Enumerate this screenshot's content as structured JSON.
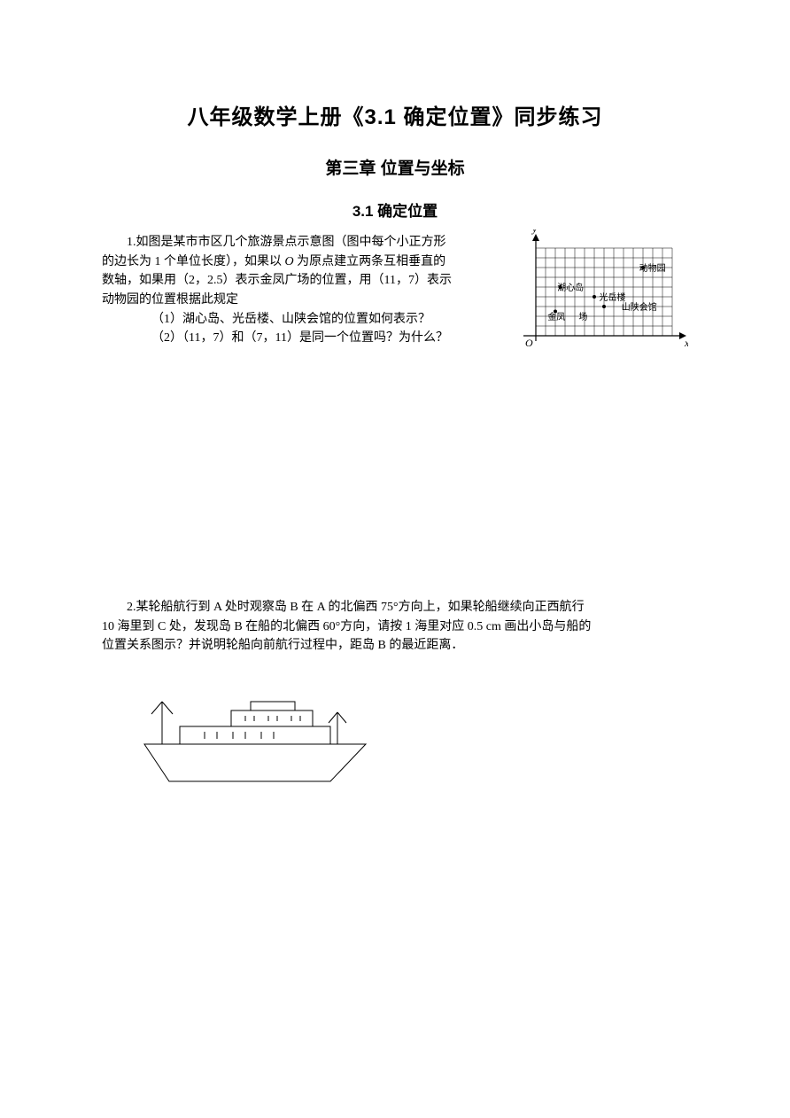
{
  "titles": {
    "main": "八年级数学上册《3.1 确定位置》同步练习",
    "chapter": "第三章  位置与坐标",
    "section": "3.1  确定位置"
  },
  "problem1": {
    "line1a": "1.如图是某市市区几个旅游景点示意图（图中每个小正方形",
    "line1b": "的边长为 1 个单位长度），如果以 ",
    "line1c": " 为原点建立两条互相垂直的",
    "line1d": "数轴，如果用（2，2.5）表示金凤广场的位置，用（11，7）表示",
    "line1e": "动物园的位置根据此规定",
    "sub1": "（1）湖心岛、光岳楼、山陕会馆的位置如何表示？",
    "sub2": "（2）（11，7）和（7，11）是同一个位置吗？为什么？",
    "O": "O"
  },
  "grid_figure": {
    "bg": "#ffffff",
    "grid_color": "#000000",
    "axis_color": "#000000",
    "text_color": "#000000",
    "cell": 11,
    "cols": 14,
    "rows": 9,
    "origin_label": "O",
    "x_label": "x",
    "y_label": "y",
    "labels": [
      {
        "text": "动物园",
        "col": 10.6,
        "row": 7
      },
      {
        "text": "湖心岛",
        "col": 2.2,
        "row": 5
      },
      {
        "text": "光岳楼",
        "col": 6.5,
        "row": 4
      },
      {
        "text": "山陕会馆",
        "col": 8.8,
        "row": 3
      },
      {
        "text": "金凤",
        "col": 1.2,
        "row": 2
      },
      {
        "text": "场",
        "col": 4.4,
        "row": 2
      }
    ],
    "points": [
      {
        "col": 2.5,
        "row": 5
      },
      {
        "col": 6,
        "row": 4
      },
      {
        "col": 7,
        "row": 3
      },
      {
        "col": 2,
        "row": 2.5
      },
      {
        "col": 11,
        "row": 7
      }
    ],
    "font_size": 10
  },
  "problem2": {
    "line1": "2.某轮船航行到 A 处时观察岛 B 在 A 的北偏西 75°方向上，如果轮船继续向正西航行",
    "line2": "10 海里到 C 处，发现岛 B 在船的北偏西 60°方向，请按 1 海里对应 0.5 cm 画出小岛与船的",
    "line3": "位置关系图示？并说明轮船向前航行过程中，距岛 B 的最近距离．"
  },
  "ship_figure": {
    "stroke": "#000000",
    "fill": "#ffffff",
    "stroke_width": 1
  }
}
